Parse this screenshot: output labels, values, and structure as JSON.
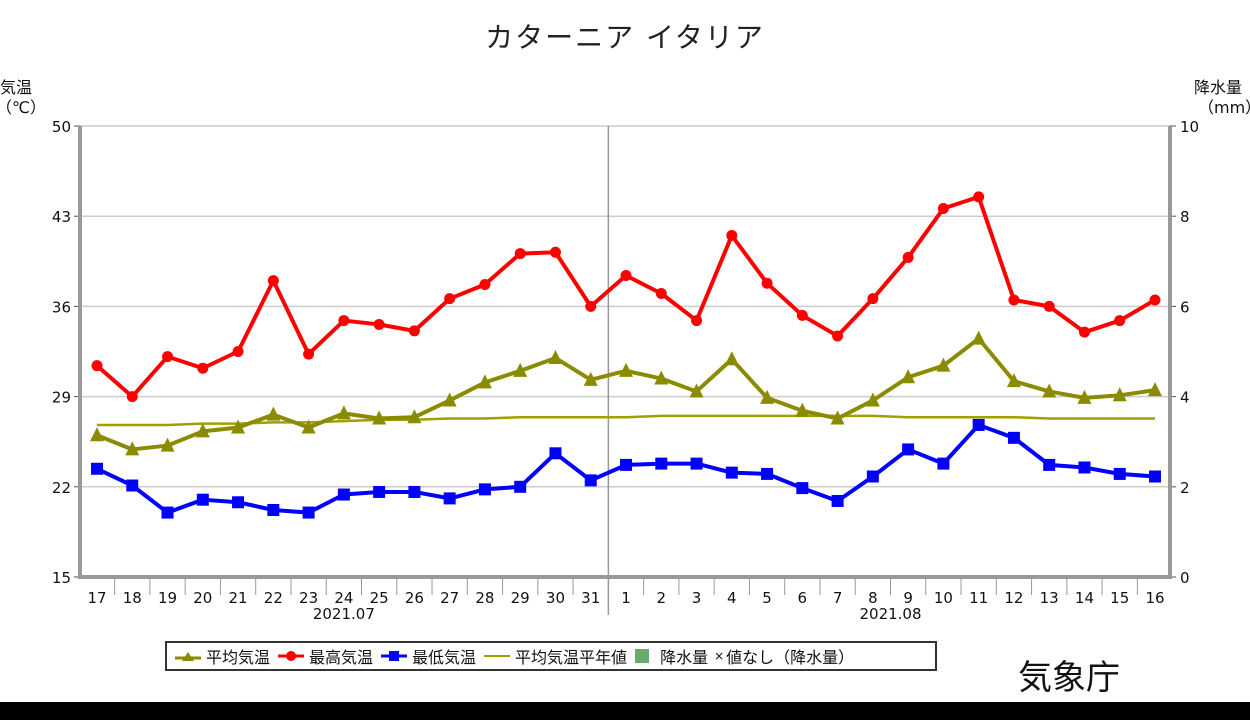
{
  "title": "カターニア イタリア",
  "left_axis": {
    "label": "気温",
    "unit": "（℃）"
  },
  "right_axis": {
    "label": "降水量",
    "unit": "（mm）"
  },
  "agency": "気象庁",
  "legend": {
    "avg": "平均気温",
    "max": "最高気温",
    "min": "最低気温",
    "normal": "平均気温平年値",
    "precip": "降水量",
    "nodata_mark": "×",
    "nodata": "値なし（降水量）"
  },
  "colors": {
    "avg": "#8b8b00",
    "max": "#ff0000",
    "min": "#0000ff",
    "normal": "#a0a000",
    "precip": "#6aaa6a",
    "grid": "#cccccc",
    "axis": "#999999"
  },
  "chart_data": {
    "type": "line",
    "title": "カターニア イタリア",
    "xlabel": "",
    "ylabel": "気温（℃）",
    "y2label": "降水量（mm）",
    "ylim": [
      15,
      50
    ],
    "yticks": [
      15,
      22,
      29,
      36,
      43,
      50
    ],
    "y2lim": [
      0,
      10
    ],
    "y2ticks": [
      0,
      2,
      4,
      6,
      8,
      10
    ],
    "grid": true,
    "legend_position": "bottom",
    "categories": [
      "17",
      "18",
      "19",
      "20",
      "21",
      "22",
      "23",
      "24",
      "25",
      "26",
      "27",
      "28",
      "29",
      "30",
      "31",
      "1",
      "2",
      "3",
      "4",
      "5",
      "6",
      "7",
      "8",
      "9",
      "10",
      "11",
      "12",
      "13",
      "14",
      "15",
      "16"
    ],
    "month_labels": [
      {
        "label": "2021.07",
        "center_index": 7
      },
      {
        "label": "2021.08",
        "center_index": 22.5
      }
    ],
    "series": [
      {
        "name": "平均気温",
        "marker": "triangle",
        "values": [
          26.0,
          24.9,
          25.2,
          26.3,
          26.6,
          27.6,
          26.6,
          27.7,
          27.3,
          27.4,
          28.7,
          30.1,
          31.0,
          32.0,
          30.3,
          31.0,
          30.4,
          29.4,
          31.9,
          28.9,
          27.9,
          27.3,
          28.7,
          30.5,
          31.4,
          33.5,
          30.2,
          29.4,
          28.9,
          29.1,
          29.5
        ]
      },
      {
        "name": "最高気温",
        "marker": "circle",
        "values": [
          31.4,
          29.0,
          32.1,
          31.2,
          32.5,
          38.0,
          32.3,
          34.9,
          34.6,
          34.1,
          36.6,
          37.7,
          40.1,
          40.2,
          36.0,
          38.4,
          37.0,
          34.9,
          41.5,
          37.8,
          35.3,
          33.7,
          36.6,
          39.8,
          43.6,
          44.5,
          36.5,
          36.0,
          34.0,
          34.9,
          36.5
        ]
      },
      {
        "name": "最低気温",
        "marker": "square",
        "values": [
          23.4,
          22.1,
          20.0,
          21.0,
          20.8,
          20.2,
          20.0,
          21.4,
          21.6,
          21.6,
          21.1,
          21.8,
          22.0,
          24.6,
          22.5,
          23.7,
          23.8,
          23.8,
          23.1,
          23.0,
          21.9,
          20.9,
          22.8,
          24.9,
          23.8,
          26.8,
          25.8,
          23.7,
          23.5,
          23.0,
          22.8
        ]
      },
      {
        "name": "平均気温平年値",
        "marker": "none",
        "values": [
          26.8,
          26.8,
          26.8,
          26.9,
          26.9,
          27.0,
          27.0,
          27.1,
          27.2,
          27.2,
          27.3,
          27.3,
          27.4,
          27.4,
          27.4,
          27.4,
          27.5,
          27.5,
          27.5,
          27.5,
          27.5,
          27.5,
          27.5,
          27.4,
          27.4,
          27.4,
          27.4,
          27.3,
          27.3,
          27.3,
          27.3
        ]
      }
    ]
  }
}
